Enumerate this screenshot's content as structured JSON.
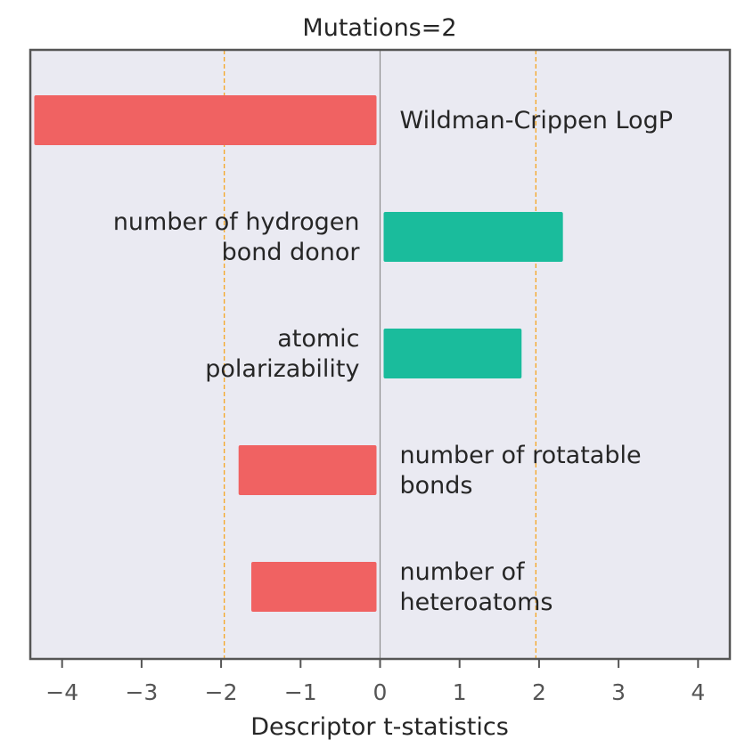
{
  "chart_data": {
    "type": "bar",
    "orientation": "horizontal",
    "title": "Mutations=2",
    "xlabel": "Descriptor t-statistics",
    "ylabel": "",
    "xlim": [
      -4.4,
      4.4
    ],
    "xticks": [
      -4,
      -3,
      -2,
      -1,
      0,
      1,
      2,
      3,
      4
    ],
    "xtick_labels": [
      "−4",
      "−3",
      "−2",
      "−1",
      "0",
      "1",
      "2",
      "3",
      "4"
    ],
    "threshold_lines": [
      -1.96,
      1.96
    ],
    "grid": false,
    "bars": [
      {
        "label": [
          "Wildman-Crippen LogP"
        ],
        "value": -4.35
      },
      {
        "label": [
          "number of hydrogen",
          "bond donor"
        ],
        "value": 2.3
      },
      {
        "label": [
          "atomic",
          "polarizability"
        ],
        "value": 1.78
      },
      {
        "label": [
          "number of rotatable",
          "bonds"
        ],
        "value": -1.78
      },
      {
        "label": [
          "number of",
          "heteroatoms"
        ],
        "value": -1.62
      }
    ],
    "colors": {
      "negative": "#f06262",
      "positive": "#1abc9c",
      "background": "#eaeaf2",
      "threshold": "#f5a623",
      "zero_line": "#8c8c8c",
      "frame": "#555555"
    }
  }
}
